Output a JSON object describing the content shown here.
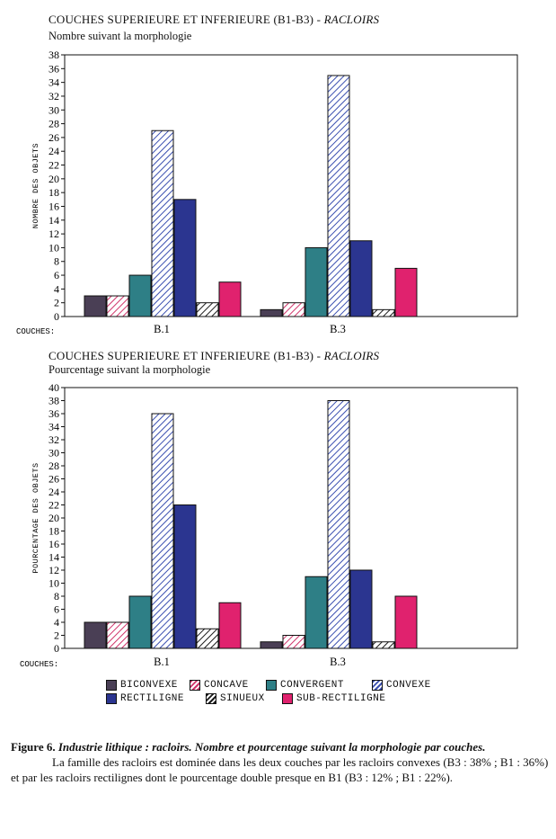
{
  "chart_data": [
    {
      "type": "bar",
      "title": "COUCHES SUPERIEURE ET INFERIEURE (B1-B3) - ",
      "title_italic": "RACLOIRS",
      "subtitle": "Nombre suivant la morphologie",
      "ylabel": "NOMBRE DES OBJETS",
      "xlabel": "COUCHES:",
      "categories": [
        "B.1",
        "B.3"
      ],
      "ylim": [
        0,
        38
      ],
      "ytick_step": 2,
      "series": [
        {
          "name": "BICONVEXE",
          "values": [
            3,
            1
          ]
        },
        {
          "name": "CONCAVE",
          "values": [
            3,
            2
          ]
        },
        {
          "name": "CONVERGENT",
          "values": [
            6,
            10
          ]
        },
        {
          "name": "CONVEXE",
          "values": [
            27,
            35
          ]
        },
        {
          "name": "RECTILIGNE",
          "values": [
            17,
            11
          ]
        },
        {
          "name": "SINUEUX",
          "values": [
            2,
            1
          ]
        },
        {
          "name": "SUB-RECTILIGNE",
          "values": [
            5,
            7
          ]
        }
      ]
    },
    {
      "type": "bar",
      "title": "COUCHES SUPERIEURE ET INFERIEURE (B1-B3) - ",
      "title_italic": "RACLOIRS",
      "subtitle": "Pourcentage suivant la morphologie",
      "ylabel": "POURCENTAGE DES OBJETS",
      "xlabel": "COUCHES:",
      "categories": [
        "B.1",
        "B.3"
      ],
      "ylim": [
        0,
        40
      ],
      "ytick_step": 2,
      "series": [
        {
          "name": "BICONVEXE",
          "values": [
            4,
            1
          ]
        },
        {
          "name": "CONCAVE",
          "values": [
            4,
            2
          ]
        },
        {
          "name": "CONVERGENT",
          "values": [
            8,
            11
          ]
        },
        {
          "name": "CONVEXE",
          "values": [
            36,
            38
          ]
        },
        {
          "name": "RECTILIGNE",
          "values": [
            22,
            12
          ]
        },
        {
          "name": "SINUEUX",
          "values": [
            3,
            1
          ]
        },
        {
          "name": "SUB-RECTILIGNE",
          "values": [
            7,
            8
          ]
        }
      ]
    }
  ],
  "series_styles": [
    {
      "name": "BICONVEXE",
      "color": "#4a3f55",
      "pattern": "solid"
    },
    {
      "name": "CONCAVE",
      "color": "#d0336a",
      "pattern": "hatch"
    },
    {
      "name": "CONVERGENT",
      "color": "#2e7f86",
      "pattern": "solid"
    },
    {
      "name": "CONVEXE",
      "color": "#3a4fb0",
      "pattern": "hatch"
    },
    {
      "name": "RECTILIGNE",
      "color": "#2b3590",
      "pattern": "solid"
    },
    {
      "name": "SINUEUX",
      "color": "#1a1a1a",
      "pattern": "hatch"
    },
    {
      "name": "SUB-RECTILIGNE",
      "color": "#e0226e",
      "pattern": "solid"
    }
  ],
  "legend": [
    "BICONVEXE",
    "CONCAVE",
    "CONVERGENT",
    "CONVEXE",
    "RECTILIGNE",
    "SINUEUX",
    "SUB-RECTILIGNE"
  ],
  "caption": {
    "fig_label": "Figure 6.",
    "fig_title": "Industrie lithique : racloirs. Nombre et pourcentage suivant la morphologie par couches.",
    "body": "La famille des racloirs est dominée dans les deux couches par les racloirs convexes (B3 : 38% ; B1 : 36%) et par les racloirs rectilignes dont le pourcentage double presque en B1 (B3 : 12% ; B1 : 22%)."
  }
}
